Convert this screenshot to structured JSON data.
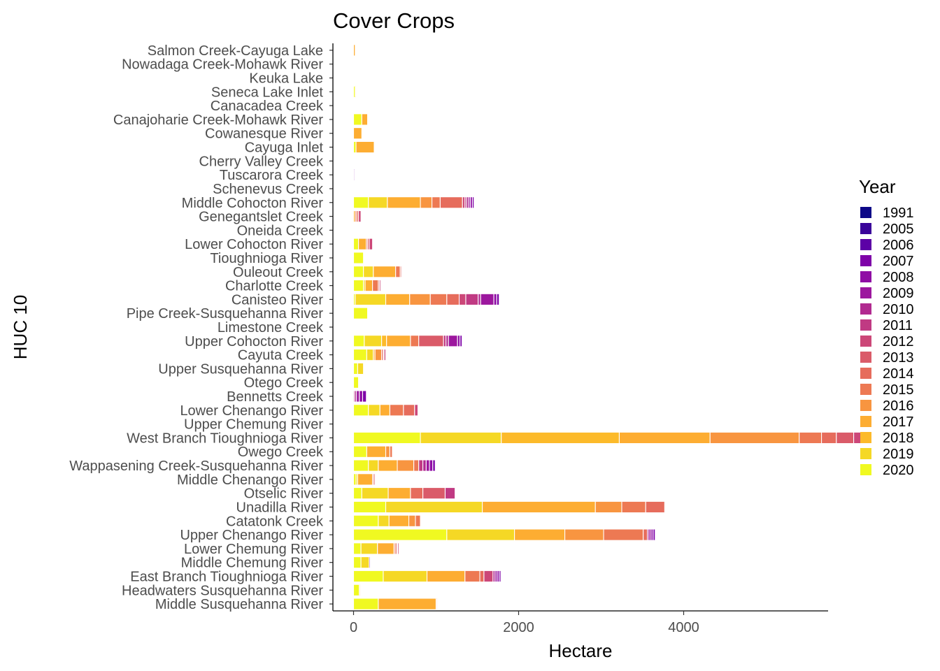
{
  "chart_data": {
    "type": "bar",
    "orientation": "horizontal",
    "stacked": true,
    "title": "Cover Crops",
    "xlabel": "Hectare",
    "ylabel": "HUC 10",
    "xlim": [
      -250,
      5750
    ],
    "xticks": [
      0,
      2000,
      4000
    ],
    "grid": false,
    "legend": {
      "title": "Year",
      "position": "right",
      "entries": [
        "1991",
        "2005",
        "2006",
        "2007",
        "2008",
        "2009",
        "2010",
        "2011",
        "2012",
        "2013",
        "2014",
        "2015",
        "2016",
        "2017",
        "2018",
        "2019",
        "2020"
      ],
      "colors": [
        "#0D0887",
        "#3A049A",
        "#5C01A6",
        "#7E03A8",
        "#8F0DA4",
        "#9C179E",
        "#B12A90",
        "#C03A83",
        "#CC4778",
        "#DA5B69",
        "#E66C5C",
        "#ED7953",
        "#F89540",
        "#FDAD32",
        "#FCBA2A",
        "#F5D825",
        "#F0F921"
      ]
    },
    "categories": [
      "Salmon Creek-Cayuga Lake",
      "Nowadaga Creek-Mohawk River",
      "Keuka Lake",
      "Seneca Lake Inlet",
      "Canacadea Creek",
      "Canajoharie Creek-Mohawk River",
      "Cowanesque River",
      "Cayuga Inlet",
      "Cherry Valley Creek",
      "Tuscarora Creek",
      "Schenevus Creek",
      "Middle Cohocton River",
      "Genegantslet Creek",
      "Oneida Creek",
      "Lower Cohocton River",
      "Tioughnioga River",
      "Ouleout Creek",
      "Charlotte Creek",
      "Canisteo River",
      "Pipe Creek-Susquehanna River",
      "Limestone Creek",
      "Upper Cohocton River",
      "Cayuta Creek",
      "Upper Susquehanna River",
      "Otego Creek",
      "Bennetts Creek",
      "Lower Chenango River",
      "Upper Chemung River",
      "West Branch Tioughnioga River",
      "Owego Creek",
      "Wappasening Creek-Susquehanna River",
      "Middle Chenango River",
      "Otselic River",
      "Unadilla River",
      "Catatonk Creek",
      "Upper Chenango River",
      "Lower Chemung River",
      "Middle Chemung River",
      "East Branch Tioughnioga River",
      "Headwaters Susquehanna River",
      "Middle Susquehanna River"
    ],
    "series": [
      {
        "values": [
          0,
          0,
          0,
          0,
          0,
          0,
          0,
          0,
          0,
          0,
          0,
          0,
          0,
          0,
          0,
          0,
          0,
          0,
          0,
          0,
          0,
          0,
          0,
          0,
          0,
          0,
          0,
          0,
          0,
          0,
          0,
          0,
          0,
          0,
          0,
          0,
          0,
          0,
          0,
          0,
          0
        ]
      },
      {
        "values": [
          0,
          0,
          0,
          0,
          0,
          0,
          0,
          0,
          0,
          0,
          0,
          0,
          0,
          0,
          0,
          0,
          0,
          0,
          0,
          0,
          0,
          0,
          0,
          0,
          0,
          0,
          0,
          0,
          0,
          0,
          0,
          0,
          0,
          0,
          0,
          0,
          0,
          0,
          0,
          0,
          0
        ]
      },
      {
        "values": [
          0,
          0,
          0,
          0,
          0,
          0,
          0,
          0,
          0,
          0,
          0,
          0,
          0,
          0,
          0,
          0,
          0,
          0,
          0,
          0,
          0,
          0,
          0,
          0,
          0,
          0,
          0,
          0,
          0,
          0,
          0,
          0,
          0,
          0,
          0,
          0,
          0,
          0,
          0,
          0,
          0
        ]
      },
      {
        "values": [
          0,
          0,
          0,
          0,
          0,
          0,
          0,
          0,
          0,
          10,
          0,
          20,
          0,
          0,
          0,
          0,
          0,
          0,
          30,
          0,
          0,
          25,
          0,
          0,
          0,
          45,
          0,
          0,
          0,
          0,
          30,
          0,
          0,
          0,
          0,
          25,
          0,
          12,
          20,
          0,
          0
        ]
      },
      {
        "values": [
          0,
          0,
          0,
          0,
          0,
          0,
          0,
          0,
          0,
          0,
          0,
          25,
          0,
          0,
          0,
          0,
          0,
          0,
          35,
          0,
          0,
          30,
          0,
          0,
          0,
          40,
          0,
          0,
          0,
          0,
          40,
          0,
          0,
          0,
          0,
          25,
          0,
          0,
          25,
          0,
          0
        ]
      },
      {
        "values": [
          0,
          0,
          0,
          0,
          0,
          0,
          0,
          0,
          0,
          0,
          0,
          20,
          0,
          0,
          0,
          0,
          0,
          0,
          160,
          0,
          0,
          110,
          0,
          0,
          0,
          35,
          0,
          0,
          0,
          0,
          40,
          0,
          0,
          0,
          0,
          25,
          0,
          0,
          25,
          0,
          0
        ]
      },
      {
        "values": [
          0,
          0,
          0,
          0,
          0,
          0,
          0,
          0,
          0,
          0,
          0,
          25,
          0,
          0,
          0,
          0,
          0,
          0,
          30,
          0,
          0,
          30,
          0,
          0,
          0,
          20,
          0,
          0,
          0,
          0,
          40,
          0,
          0,
          0,
          0,
          20,
          0,
          0,
          25,
          0,
          0
        ]
      },
      {
        "values": [
          0,
          0,
          0,
          0,
          0,
          0,
          0,
          0,
          0,
          0,
          0,
          20,
          0,
          0,
          0,
          0,
          0,
          0,
          150,
          0,
          0,
          30,
          0,
          0,
          0,
          15,
          0,
          0,
          0,
          0,
          50,
          0,
          120,
          0,
          0,
          0,
          0,
          0,
          0,
          0,
          0
        ]
      },
      {
        "values": [
          0,
          0,
          0,
          0,
          0,
          0,
          0,
          0,
          0,
          0,
          0,
          30,
          30,
          0,
          40,
          0,
          10,
          15,
          80,
          0,
          0,
          0,
          20,
          0,
          0,
          0,
          40,
          0,
          200,
          0,
          0,
          0,
          0,
          0,
          0,
          0,
          15,
          0,
          110,
          0,
          0
        ]
      },
      {
        "values": [
          0,
          0,
          0,
          0,
          0,
          0,
          0,
          0,
          0,
          0,
          0,
          0,
          0,
          0,
          20,
          0,
          0,
          0,
          0,
          0,
          0,
          300,
          10,
          0,
          0,
          0,
          0,
          0,
          210,
          0,
          0,
          15,
          270,
          0,
          0,
          0,
          10,
          0,
          0,
          0,
          0
        ]
      },
      {
        "values": [
          0,
          0,
          0,
          0,
          0,
          0,
          0,
          0,
          0,
          0,
          0,
          270,
          20,
          0,
          15,
          0,
          15,
          15,
          150,
          0,
          0,
          0,
          20,
          0,
          0,
          0,
          135,
          0,
          180,
          0,
          0,
          15,
          150,
          230,
          0,
          50,
          20,
          0,
          50,
          0,
          0
        ]
      },
      {
        "values": [
          0,
          0,
          0,
          0,
          0,
          0,
          0,
          0,
          0,
          0,
          0,
          100,
          20,
          0,
          0,
          0,
          55,
          70,
          200,
          0,
          0,
          100,
          0,
          0,
          0,
          0,
          165,
          0,
          270,
          30,
          60,
          0,
          0,
          290,
          60,
          480,
          15,
          0,
          180,
          0,
          10
        ]
      },
      {
        "values": [
          0,
          0,
          0,
          0,
          0,
          0,
          0,
          0,
          0,
          0,
          0,
          140,
          0,
          0,
          0,
          0,
          0,
          0,
          250,
          0,
          0,
          0,
          80,
          0,
          0,
          0,
          0,
          0,
          1080,
          50,
          200,
          0,
          0,
          320,
          80,
          470,
          0,
          0,
          0,
          10,
          0
        ]
      },
      {
        "values": [
          20,
          0,
          0,
          10,
          0,
          70,
          100,
          220,
          0,
          0,
          0,
          400,
          20,
          0,
          95,
          0,
          270,
          90,
          290,
          0,
          0,
          290,
          20,
          0,
          0,
          0,
          120,
          0,
          1100,
          230,
          230,
          180,
          270,
          1370,
          240,
          610,
          200,
          0,
          460,
          0,
          700
        ]
      },
      {
        "values": [
          0,
          0,
          0,
          0,
          0,
          0,
          0,
          0,
          0,
          0,
          0,
          0,
          0,
          0,
          0,
          0,
          0,
          0,
          0,
          0,
          0,
          60,
          0,
          0,
          0,
          0,
          0,
          0,
          1430,
          0,
          0,
          0,
          0,
          0,
          0,
          0,
          0,
          0,
          0,
          0,
          0
        ]
      },
      {
        "values": [
          0,
          0,
          0,
          0,
          0,
          0,
          0,
          0,
          0,
          0,
          0,
          230,
          0,
          0,
          0,
          0,
          120,
          20,
          370,
          0,
          0,
          210,
          80,
          70,
          0,
          0,
          140,
          0,
          980,
          0,
          120,
          20,
          320,
          1170,
          130,
          820,
          200,
          100,
          530,
          0,
          0
        ]
      },
      {
        "values": [
          0,
          0,
          0,
          20,
          0,
          100,
          0,
          30,
          0,
          0,
          0,
          180,
          0,
          0,
          60,
          120,
          120,
          120,
          20,
          170,
          0,
          130,
          160,
          50,
          60,
          0,
          180,
          0,
          810,
          160,
          180,
          30,
          100,
          390,
          300,
          1130,
          90,
          90,
          360,
          70,
          300
        ]
      }
    ]
  }
}
